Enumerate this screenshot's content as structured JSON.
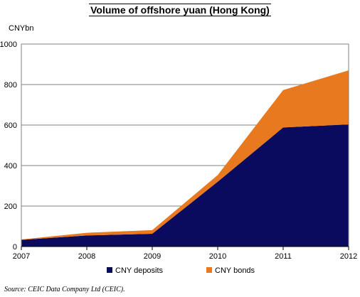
{
  "chart_data": {
    "type": "area",
    "stacked": true,
    "title": "Volume of offshore yuan (Hong Kong)",
    "ylabel": "CNYbn",
    "x": [
      "2007",
      "2008",
      "2009",
      "2010",
      "2011",
      "2012"
    ],
    "ylim": [
      0,
      1000
    ],
    "yticks": [
      0,
      200,
      400,
      600,
      800,
      1000
    ],
    "grid": true,
    "legend_position": "bottom",
    "series": [
      {
        "name": "CNY deposits",
        "values": [
          33,
          55,
          63,
          320,
          588,
          603
        ],
        "color": "#0a0a5e"
      },
      {
        "name": "CNY bonds",
        "values": [
          2,
          13,
          18,
          33,
          185,
          267
        ],
        "color": "#e8791e"
      }
    ]
  },
  "source": "Source: CEIC Data Company Ltd (CEIC)."
}
